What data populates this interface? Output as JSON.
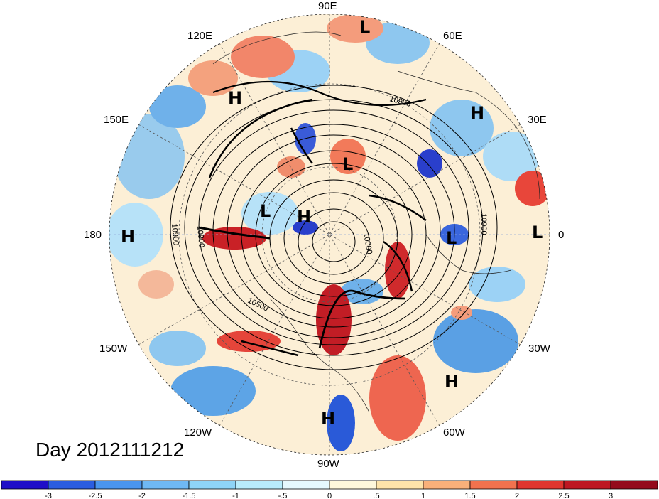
{
  "title": "Day 2012111212",
  "map": {
    "projection": "north polar stereographic",
    "longitude_labels": [
      "90E",
      "120E",
      "60E",
      "150E",
      "30E",
      "180",
      "0",
      "150W",
      "30W",
      "120W",
      "60W",
      "90W"
    ],
    "pressure_centers": [
      {
        "type": "L",
        "lon_label": "near 85E"
      },
      {
        "type": "H",
        "lon_label": "near 115E"
      },
      {
        "type": "H",
        "lon_label": "near 40E"
      },
      {
        "type": "L",
        "lon_label": "near 95E"
      },
      {
        "type": "L",
        "lon_label": "near 170E"
      },
      {
        "type": "H",
        "lon_label": "near 150E"
      },
      {
        "type": "H",
        "lon_label": "near 180"
      },
      {
        "type": "L",
        "lon_label": "near 15E"
      },
      {
        "type": "L",
        "lon_label": "near 0"
      },
      {
        "type": "H",
        "lon_label": "near 45W"
      },
      {
        "type": "H",
        "lon_label": "near 90W"
      }
    ],
    "contour_labels": [
      "10900",
      "10900",
      "10900",
      "10500",
      "10000",
      "10900"
    ],
    "colors": {
      "ocean_rim": "#ffffff",
      "contour": "#000000"
    }
  },
  "colorbar": {
    "ticks": [
      "-3",
      "-2.5",
      "-2",
      "-1.5",
      "-1",
      "-.5",
      "0",
      ".5",
      "1",
      "1.5",
      "2",
      "2.5",
      "3"
    ],
    "colors": [
      "#1f0fc8",
      "#2b5de0",
      "#4a95ee",
      "#6fb8f4",
      "#8ed4f7",
      "#b8ecfb",
      "#e6f8fd",
      "#fdf7dc",
      "#fde3aa",
      "#f9b07a",
      "#f2724e",
      "#e0352e",
      "#bd1722",
      "#940a1c"
    ]
  }
}
